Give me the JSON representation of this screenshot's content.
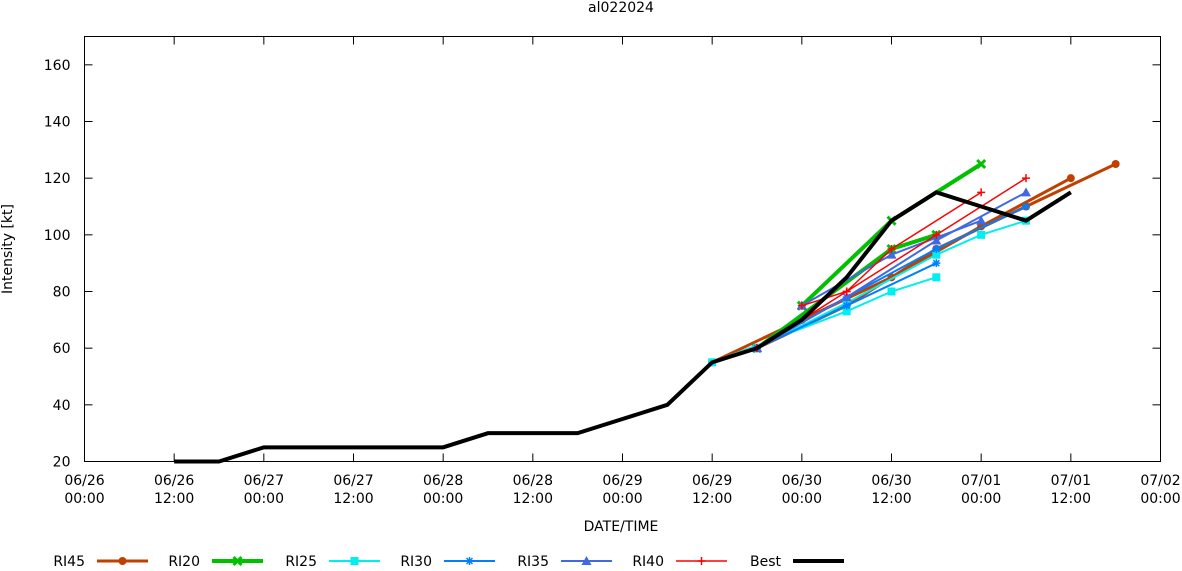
{
  "chart_data": {
    "type": "line",
    "title": "al022024",
    "xlabel": "DATE/TIME",
    "ylabel": "Intensity [kt]",
    "x_range": [
      "2024-06-26 00:00",
      "2024-07-02 00:00"
    ],
    "ylim": [
      20,
      170
    ],
    "x_ticks": [
      [
        "06/26",
        "00:00"
      ],
      [
        "06/26",
        "12:00"
      ],
      [
        "06/27",
        "00:00"
      ],
      [
        "06/27",
        "12:00"
      ],
      [
        "06/28",
        "00:00"
      ],
      [
        "06/28",
        "12:00"
      ],
      [
        "06/29",
        "00:00"
      ],
      [
        "06/29",
        "12:00"
      ],
      [
        "06/30",
        "00:00"
      ],
      [
        "06/30",
        "12:00"
      ],
      [
        "07/01",
        "00:00"
      ],
      [
        "07/01",
        "12:00"
      ],
      [
        "07/02",
        "00:00"
      ]
    ],
    "y_ticks": [
      20,
      40,
      60,
      80,
      100,
      120,
      140,
      160
    ],
    "grid": false,
    "legend_placement": "bottom",
    "series": [
      {
        "name": "RI45",
        "color": "#c04000",
        "marker": "circle",
        "width": 3,
        "tracks": [
          [
            [
              "2024-06-29 18:00",
              60
            ],
            [
              "2024-06-30 06:00",
              75
            ],
            [
              "2024-06-30 18:00",
              95
            ],
            [
              "2024-07-01 06:00",
              110
            ],
            [
              "2024-07-01 18:00",
              125
            ]
          ],
          [
            [
              "2024-06-29 12:00",
              55
            ],
            [
              "2024-06-30 00:00",
              70
            ],
            [
              "2024-06-30 12:00",
              85
            ],
            [
              "2024-07-01 00:00",
              103
            ],
            [
              "2024-07-01 12:00",
              120
            ]
          ]
        ]
      },
      {
        "name": "RI20",
        "color": "#00c000",
        "marker": "x",
        "width": 4,
        "tracks": [
          [
            [
              "2024-06-30 00:00",
              75
            ],
            [
              "2024-06-30 12:00",
              105
            ],
            [
              "2024-07-01 00:00",
              125
            ]
          ],
          [
            [
              "2024-06-29 18:00",
              60
            ],
            [
              "2024-06-30 12:00",
              95
            ],
            [
              "2024-06-30 18:00",
              100
            ]
          ]
        ]
      },
      {
        "name": "RI25",
        "color": "#00eeee",
        "marker": "square",
        "width": 2,
        "tracks": [
          [
            [
              "2024-06-29 12:00",
              55
            ],
            [
              "2024-06-30 06:00",
              73
            ],
            [
              "2024-06-30 12:00",
              80
            ],
            [
              "2024-06-30 18:00",
              85
            ]
          ],
          [
            [
              "2024-06-29 18:00",
              60
            ],
            [
              "2024-06-30 06:00",
              76
            ],
            [
              "2024-06-30 18:00",
              93
            ],
            [
              "2024-07-01 00:00",
              100
            ],
            [
              "2024-07-01 06:00",
              105
            ]
          ]
        ]
      },
      {
        "name": "RI30",
        "color": "#0080ff",
        "marker": "asterisk",
        "width": 2,
        "tracks": [
          [
            [
              "2024-06-29 18:00",
              60
            ],
            [
              "2024-06-30 06:00",
              75
            ],
            [
              "2024-06-30 18:00",
              90
            ]
          ],
          [
            [
              "2024-06-29 18:00",
              60
            ],
            [
              "2024-06-30 06:00",
              78
            ],
            [
              "2024-06-30 18:00",
              95
            ],
            [
              "2024-07-01 06:00",
              110
            ]
          ]
        ]
      },
      {
        "name": "RI35",
        "color": "#4169e1",
        "marker": "triangle",
        "width": 2,
        "tracks": [
          [
            [
              "2024-06-29 18:00",
              60
            ],
            [
              "2024-06-30 06:00",
              78
            ],
            [
              "2024-06-30 18:00",
              98
            ],
            [
              "2024-07-01 06:00",
              115
            ]
          ],
          [
            [
              "2024-06-30 00:00",
              75
            ],
            [
              "2024-06-30 12:00",
              93
            ],
            [
              "2024-07-01 00:00",
              105
            ]
          ]
        ]
      },
      {
        "name": "RI40",
        "color": "#ff0000",
        "marker": "plus",
        "width": 1.5,
        "tracks": [
          [
            [
              "2024-06-30 00:00",
              75
            ],
            [
              "2024-06-30 06:00",
              80
            ],
            [
              "2024-06-30 12:00",
              95
            ],
            [
              "2024-07-01 00:00",
              115
            ]
          ],
          [
            [
              "2024-06-29 18:00",
              60
            ],
            [
              "2024-06-30 06:00",
              80
            ],
            [
              "2024-06-30 18:00",
              100
            ],
            [
              "2024-07-01 06:00",
              120
            ]
          ]
        ]
      },
      {
        "name": "Best",
        "color": "#000000",
        "marker": "none",
        "width": 4,
        "tracks": [
          [
            [
              "2024-06-26 12:00",
              20
            ],
            [
              "2024-06-26 18:00",
              20
            ],
            [
              "2024-06-27 00:00",
              25
            ],
            [
              "2024-06-28 00:00",
              25
            ],
            [
              "2024-06-28 06:00",
              30
            ],
            [
              "2024-06-28 18:00",
              30
            ],
            [
              "2024-06-29 00:00",
              35
            ],
            [
              "2024-06-29 06:00",
              40
            ],
            [
              "2024-06-29 12:00",
              55
            ],
            [
              "2024-06-29 18:00",
              60
            ],
            [
              "2024-06-30 00:00",
              70
            ],
            [
              "2024-06-30 06:00",
              85
            ],
            [
              "2024-06-30 12:00",
              105
            ],
            [
              "2024-06-30 18:00",
              115
            ],
            [
              "2024-07-01 00:00",
              110
            ],
            [
              "2024-07-01 06:00",
              105
            ],
            [
              "2024-07-01 12:00",
              115
            ]
          ]
        ]
      }
    ]
  }
}
